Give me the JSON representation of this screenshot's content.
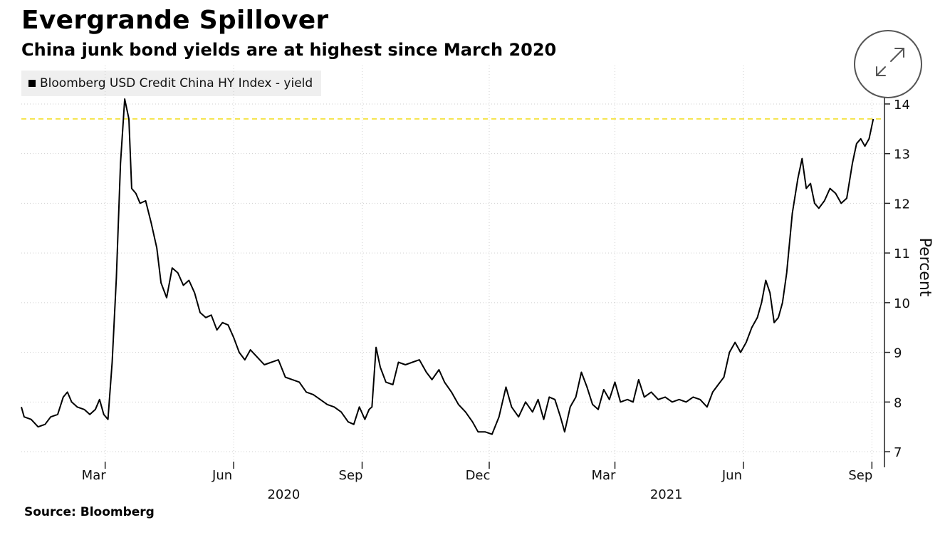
{
  "chart_data": {
    "type": "line",
    "title": "Evergrande Spillover",
    "subtitle": "China junk bond yields are at highest since March 2020",
    "ylabel": "Percent",
    "xlabel": "",
    "source": "Source: Bloomberg",
    "legend": {
      "placement": "top-left",
      "entries": [
        "Bloomberg USD Credit China HY Index - yield"
      ]
    },
    "grid": true,
    "ylim": [
      6.8,
      14.2
    ],
    "yticks": [
      7,
      8,
      9,
      10,
      11,
      12,
      13,
      14
    ],
    "xlim": [
      "2020-01-01",
      "2021-09-10"
    ],
    "xticks": [
      {
        "date": "2020-03-01",
        "label": "Mar"
      },
      {
        "date": "2020-06-01",
        "label": "Jun"
      },
      {
        "date": "2020-09-01",
        "label": "Sep"
      },
      {
        "date": "2020-12-01",
        "label": "Dec"
      },
      {
        "date": "2021-03-01",
        "label": "Mar"
      },
      {
        "date": "2021-06-01",
        "label": "Jun"
      },
      {
        "date": "2021-09-01",
        "label": "Sep"
      }
    ],
    "year_labels": [
      {
        "date": "2020-07-15",
        "label": "2020"
      },
      {
        "date": "2021-04-15",
        "label": "2021"
      }
    ],
    "reference_line": {
      "value": 13.7,
      "color": "#f5e44a",
      "style": "dashed"
    },
    "series": [
      {
        "name": "Bloomberg USD Credit China HY Index - yield",
        "color": "#000000",
        "points": [
          [
            "2020-01-01",
            7.9
          ],
          [
            "2020-01-03",
            7.7
          ],
          [
            "2020-01-08",
            7.65
          ],
          [
            "2020-01-13",
            7.5
          ],
          [
            "2020-01-18",
            7.55
          ],
          [
            "2020-01-22",
            7.7
          ],
          [
            "2020-01-27",
            7.75
          ],
          [
            "2020-01-31",
            8.1
          ],
          [
            "2020-02-03",
            8.2
          ],
          [
            "2020-02-06",
            8.0
          ],
          [
            "2020-02-10",
            7.9
          ],
          [
            "2020-02-15",
            7.85
          ],
          [
            "2020-02-19",
            7.75
          ],
          [
            "2020-02-23",
            7.85
          ],
          [
            "2020-02-26",
            8.05
          ],
          [
            "2020-02-29",
            7.75
          ],
          [
            "2020-03-03",
            7.65
          ],
          [
            "2020-03-06",
            8.8
          ],
          [
            "2020-03-09",
            10.5
          ],
          [
            "2020-03-12",
            12.8
          ],
          [
            "2020-03-15",
            14.1
          ],
          [
            "2020-03-18",
            13.7
          ],
          [
            "2020-03-20",
            12.3
          ],
          [
            "2020-03-23",
            12.2
          ],
          [
            "2020-03-26",
            12.0
          ],
          [
            "2020-03-30",
            12.05
          ],
          [
            "2020-04-03",
            11.6
          ],
          [
            "2020-04-07",
            11.1
          ],
          [
            "2020-04-10",
            10.4
          ],
          [
            "2020-04-14",
            10.1
          ],
          [
            "2020-04-18",
            10.7
          ],
          [
            "2020-04-22",
            10.6
          ],
          [
            "2020-04-26",
            10.35
          ],
          [
            "2020-04-30",
            10.45
          ],
          [
            "2020-05-04",
            10.2
          ],
          [
            "2020-05-08",
            9.8
          ],
          [
            "2020-05-12",
            9.7
          ],
          [
            "2020-05-16",
            9.75
          ],
          [
            "2020-05-20",
            9.45
          ],
          [
            "2020-05-24",
            9.6
          ],
          [
            "2020-05-28",
            9.55
          ],
          [
            "2020-06-01",
            9.3
          ],
          [
            "2020-06-05",
            9.0
          ],
          [
            "2020-06-09",
            8.85
          ],
          [
            "2020-06-13",
            9.05
          ],
          [
            "2020-06-18",
            8.9
          ],
          [
            "2020-06-23",
            8.75
          ],
          [
            "2020-06-28",
            8.8
          ],
          [
            "2020-07-03",
            8.85
          ],
          [
            "2020-07-08",
            8.5
          ],
          [
            "2020-07-13",
            8.45
          ],
          [
            "2020-07-18",
            8.4
          ],
          [
            "2020-07-23",
            8.2
          ],
          [
            "2020-07-28",
            8.15
          ],
          [
            "2020-08-02",
            8.05
          ],
          [
            "2020-08-07",
            7.95
          ],
          [
            "2020-08-12",
            7.9
          ],
          [
            "2020-08-17",
            7.8
          ],
          [
            "2020-08-22",
            7.6
          ],
          [
            "2020-08-26",
            7.55
          ],
          [
            "2020-08-30",
            7.9
          ],
          [
            "2020-09-03",
            7.65
          ],
          [
            "2020-09-06",
            7.85
          ],
          [
            "2020-09-08",
            7.9
          ],
          [
            "2020-09-11",
            9.1
          ],
          [
            "2020-09-14",
            8.7
          ],
          [
            "2020-09-18",
            8.4
          ],
          [
            "2020-09-23",
            8.35
          ],
          [
            "2020-09-27",
            8.8
          ],
          [
            "2020-10-02",
            8.75
          ],
          [
            "2020-10-07",
            8.8
          ],
          [
            "2020-10-12",
            8.85
          ],
          [
            "2020-10-17",
            8.6
          ],
          [
            "2020-10-21",
            8.45
          ],
          [
            "2020-10-26",
            8.65
          ],
          [
            "2020-10-30",
            8.4
          ],
          [
            "2020-11-04",
            8.2
          ],
          [
            "2020-11-09",
            7.95
          ],
          [
            "2020-11-14",
            7.8
          ],
          [
            "2020-11-19",
            7.6
          ],
          [
            "2020-11-23",
            7.4
          ],
          [
            "2020-11-28",
            7.4
          ],
          [
            "2020-12-03",
            7.35
          ],
          [
            "2020-12-08",
            7.7
          ],
          [
            "2020-12-13",
            8.3
          ],
          [
            "2020-12-17",
            7.9
          ],
          [
            "2020-12-22",
            7.7
          ],
          [
            "2020-12-27",
            8.0
          ],
          [
            "2021-01-01",
            7.8
          ],
          [
            "2021-01-05",
            8.05
          ],
          [
            "2021-01-09",
            7.65
          ],
          [
            "2021-01-13",
            8.1
          ],
          [
            "2021-01-17",
            8.05
          ],
          [
            "2021-01-21",
            7.7
          ],
          [
            "2021-01-24",
            7.4
          ],
          [
            "2021-01-28",
            7.9
          ],
          [
            "2021-02-01",
            8.1
          ],
          [
            "2021-02-05",
            8.6
          ],
          [
            "2021-02-09",
            8.3
          ],
          [
            "2021-02-13",
            7.95
          ],
          [
            "2021-02-17",
            7.85
          ],
          [
            "2021-02-21",
            8.25
          ],
          [
            "2021-02-25",
            8.05
          ],
          [
            "2021-03-01",
            8.4
          ],
          [
            "2021-03-05",
            8.0
          ],
          [
            "2021-03-10",
            8.05
          ],
          [
            "2021-03-14",
            8.0
          ],
          [
            "2021-03-18",
            8.45
          ],
          [
            "2021-03-22",
            8.1
          ],
          [
            "2021-03-27",
            8.2
          ],
          [
            "2021-04-01",
            8.05
          ],
          [
            "2021-04-06",
            8.1
          ],
          [
            "2021-04-11",
            8.0
          ],
          [
            "2021-04-16",
            8.05
          ],
          [
            "2021-04-21",
            8.0
          ],
          [
            "2021-04-26",
            8.1
          ],
          [
            "2021-05-01",
            8.05
          ],
          [
            "2021-05-06",
            7.9
          ],
          [
            "2021-05-10",
            8.2
          ],
          [
            "2021-05-14",
            8.35
          ],
          [
            "2021-05-18",
            8.5
          ],
          [
            "2021-05-22",
            9.0
          ],
          [
            "2021-05-26",
            9.2
          ],
          [
            "2021-05-30",
            9.0
          ],
          [
            "2021-06-03",
            9.2
          ],
          [
            "2021-06-07",
            9.5
          ],
          [
            "2021-06-11",
            9.7
          ],
          [
            "2021-06-14",
            10.0
          ],
          [
            "2021-06-17",
            10.45
          ],
          [
            "2021-06-20",
            10.2
          ],
          [
            "2021-06-23",
            9.6
          ],
          [
            "2021-06-26",
            9.7
          ],
          [
            "2021-06-29",
            10.0
          ],
          [
            "2021-07-02",
            10.6
          ],
          [
            "2021-07-06",
            11.8
          ],
          [
            "2021-07-10",
            12.5
          ],
          [
            "2021-07-13",
            12.9
          ],
          [
            "2021-07-16",
            12.3
          ],
          [
            "2021-07-19",
            12.4
          ],
          [
            "2021-07-22",
            12.0
          ],
          [
            "2021-07-25",
            11.9
          ],
          [
            "2021-07-29",
            12.05
          ],
          [
            "2021-08-02",
            12.3
          ],
          [
            "2021-08-06",
            12.2
          ],
          [
            "2021-08-10",
            12.0
          ],
          [
            "2021-08-14",
            12.1
          ],
          [
            "2021-08-18",
            12.8
          ],
          [
            "2021-08-21",
            13.2
          ],
          [
            "2021-08-24",
            13.3
          ],
          [
            "2021-08-27",
            13.15
          ],
          [
            "2021-08-30",
            13.3
          ],
          [
            "2021-09-02",
            13.7
          ]
        ]
      }
    ]
  }
}
